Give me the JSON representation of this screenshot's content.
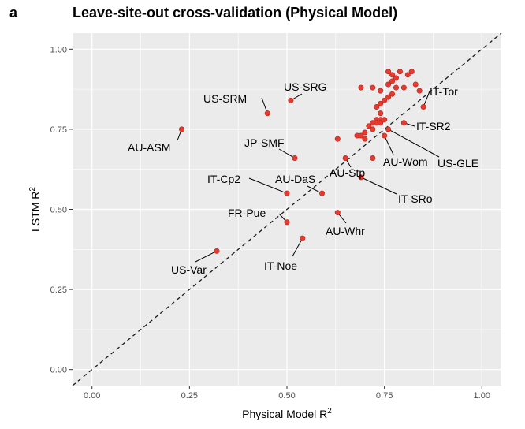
{
  "panel_letter": "a",
  "colors": {
    "panel_bg": "#ebebeb",
    "grid": "#ffffff",
    "point": "#e8392f",
    "point_stroke": "#b3261e",
    "diagonal": "#1a1a1a"
  },
  "chart_data": {
    "type": "scatter",
    "title": "Leave-site-out cross-validation (Physical Model)",
    "xlabel": "Physical Model R",
    "xlabel_sup": "2",
    "ylabel": "LSTM R",
    "ylabel_sup": "2",
    "xlim": [
      -0.05,
      1.05
    ],
    "ylim": [
      -0.05,
      1.05
    ],
    "x_ticks": [
      0.0,
      0.25,
      0.5,
      0.75,
      1.0
    ],
    "x_tick_labels": [
      "0.00",
      "0.25",
      "0.50",
      "0.75",
      "1.00"
    ],
    "y_ticks": [
      0.0,
      0.25,
      0.5,
      0.75,
      1.0
    ],
    "y_tick_labels": [
      "0.00",
      "0.25",
      "0.50",
      "0.75",
      "1.00"
    ],
    "grid": true,
    "reference_line": "y = x (dashed)",
    "labeled_points": [
      {
        "label": "US-SRG",
        "x": 0.51,
        "y": 0.84
      },
      {
        "label": "US-SRM",
        "x": 0.45,
        "y": 0.8
      },
      {
        "label": "AU-ASM",
        "x": 0.23,
        "y": 0.75
      },
      {
        "label": "JP-SMF",
        "x": 0.52,
        "y": 0.66
      },
      {
        "label": "IT-Cp2",
        "x": 0.5,
        "y": 0.55
      },
      {
        "label": "AU-DaS",
        "x": 0.59,
        "y": 0.55
      },
      {
        "label": "AU-Stp",
        "x": 0.65,
        "y": 0.66
      },
      {
        "label": "FR-Pue",
        "x": 0.5,
        "y": 0.46
      },
      {
        "label": "AU-Whr",
        "x": 0.63,
        "y": 0.49
      },
      {
        "label": "IT-Noe",
        "x": 0.54,
        "y": 0.41
      },
      {
        "label": "US-Var",
        "x": 0.32,
        "y": 0.37
      },
      {
        "label": "IT-Tor",
        "x": 0.85,
        "y": 0.82
      },
      {
        "label": "IT-SR2",
        "x": 0.8,
        "y": 0.77
      },
      {
        "label": "AU-Wom",
        "x": 0.75,
        "y": 0.73
      },
      {
        "label": "US-GLE",
        "x": 0.76,
        "y": 0.75
      },
      {
        "label": "IT-SRo",
        "x": 0.69,
        "y": 0.6
      }
    ],
    "other_points": [
      {
        "x": 0.69,
        "y": 0.88
      },
      {
        "x": 0.72,
        "y": 0.88
      },
      {
        "x": 0.74,
        "y": 0.87
      },
      {
        "x": 0.76,
        "y": 0.93
      },
      {
        "x": 0.77,
        "y": 0.92
      },
      {
        "x": 0.78,
        "y": 0.91
      },
      {
        "x": 0.79,
        "y": 0.93
      },
      {
        "x": 0.81,
        "y": 0.92
      },
      {
        "x": 0.82,
        "y": 0.93
      },
      {
        "x": 0.83,
        "y": 0.89
      },
      {
        "x": 0.84,
        "y": 0.87
      },
      {
        "x": 0.77,
        "y": 0.9
      },
      {
        "x": 0.76,
        "y": 0.89
      },
      {
        "x": 0.78,
        "y": 0.88
      },
      {
        "x": 0.8,
        "y": 0.88
      },
      {
        "x": 0.77,
        "y": 0.86
      },
      {
        "x": 0.76,
        "y": 0.85
      },
      {
        "x": 0.75,
        "y": 0.84
      },
      {
        "x": 0.74,
        "y": 0.83
      },
      {
        "x": 0.73,
        "y": 0.82
      },
      {
        "x": 0.74,
        "y": 0.8
      },
      {
        "x": 0.73,
        "y": 0.78
      },
      {
        "x": 0.74,
        "y": 0.78
      },
      {
        "x": 0.75,
        "y": 0.78
      },
      {
        "x": 0.72,
        "y": 0.77
      },
      {
        "x": 0.73,
        "y": 0.77
      },
      {
        "x": 0.74,
        "y": 0.77
      },
      {
        "x": 0.71,
        "y": 0.76
      },
      {
        "x": 0.72,
        "y": 0.75
      },
      {
        "x": 0.7,
        "y": 0.74
      },
      {
        "x": 0.68,
        "y": 0.73
      },
      {
        "x": 0.69,
        "y": 0.73
      },
      {
        "x": 0.7,
        "y": 0.72
      },
      {
        "x": 0.63,
        "y": 0.72
      },
      {
        "x": 0.72,
        "y": 0.66
      }
    ]
  }
}
